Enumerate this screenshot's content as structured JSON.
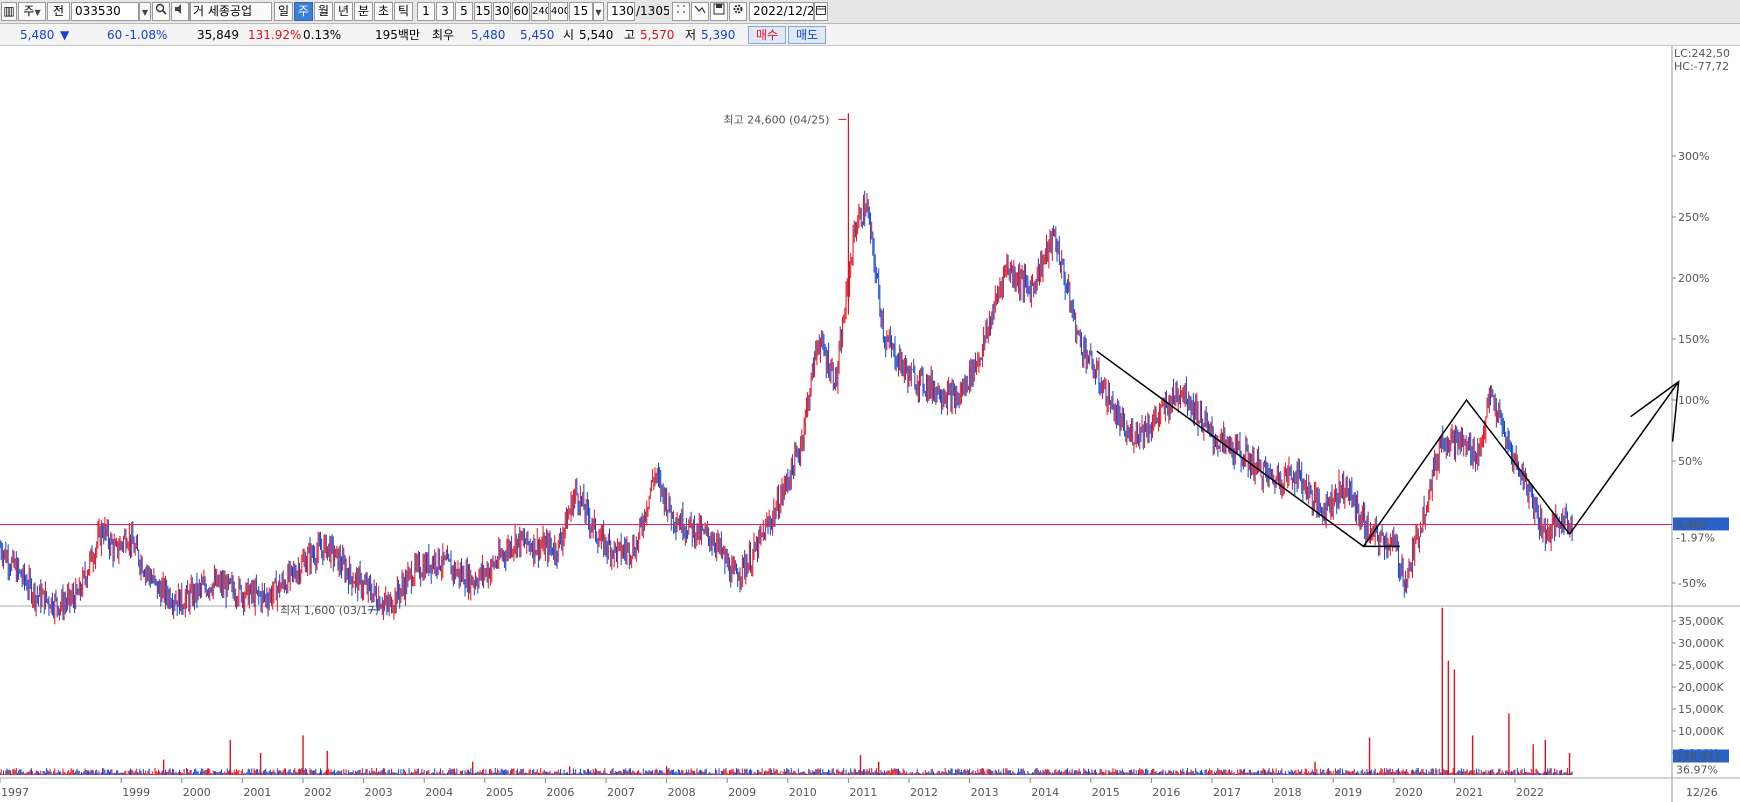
{
  "toolbar": {
    "market": "주",
    "tab_mode": "전",
    "stock_code": "033530",
    "stock_name": "세종공업",
    "stock_prefix": "거",
    "periods": [
      "일",
      "주",
      "월",
      "년",
      "분",
      "초",
      "틱"
    ],
    "active_period": "주",
    "intervals": [
      "1",
      "3",
      "5",
      "15",
      "30",
      "60",
      "240",
      "400"
    ],
    "count": "15",
    "bars_value": "1305",
    "bars_total": "/1305",
    "date": "2022/12/2"
  },
  "infobar": {
    "price": "5,480",
    "direction": "▼",
    "change": "60",
    "change_pct": "-1.08%",
    "volume": "35,849",
    "volume_ratio": "131.92%",
    "turnover": "0.13%",
    "amount": "195백만",
    "priority_label": "최우",
    "ask": "5,480",
    "bid": "5,450",
    "open_label": "시",
    "open": "5,540",
    "high_label": "고",
    "high": "5,570",
    "low_label": "저",
    "low": "5,390",
    "buy_label": "매수",
    "sell_label": "매도"
  },
  "colors": {
    "up": "#e0101a",
    "down": "#1144cc",
    "current_line": "#e8205a",
    "price_tag": "#2a63c7",
    "trend_line": "#000000"
  },
  "chart_data": {
    "type": "candlestick",
    "period": "weekly",
    "y_scale": "percent change",
    "lc": "LC:242,50",
    "hc": "HC:-77,72",
    "y_ticks": [
      "300%",
      "250%",
      "200%",
      "150%",
      "100%",
      "50%",
      "-50%"
    ],
    "x_ticks": [
      "1997",
      "1999",
      "2000",
      "2001",
      "2002",
      "2003",
      "2004",
      "2005",
      "2006",
      "2007",
      "2008",
      "2009",
      "2010",
      "2011",
      "2012",
      "2013",
      "2014",
      "2015",
      "2016",
      "2017",
      "2018",
      "2019",
      "2020",
      "2021",
      "2022"
    ],
    "x_end_label": "12/26",
    "high_annotation": "최고 24,600 (04/25)",
    "low_annotation": "최저 1,600 (03/17)",
    "current_price": "5,480",
    "current_pct": "-1.97%",
    "close_path": [
      {
        "x": 1997.0,
        "y": -20
      },
      {
        "x": 1997.2,
        "y": -35
      },
      {
        "x": 1997.6,
        "y": -60
      },
      {
        "x": 1998.0,
        "y": -68
      },
      {
        "x": 1998.3,
        "y": -60
      },
      {
        "x": 1998.5,
        "y": -30
      },
      {
        "x": 1998.7,
        "y": -5
      },
      {
        "x": 1998.9,
        "y": -25
      },
      {
        "x": 1999.1,
        "y": -10
      },
      {
        "x": 1999.3,
        "y": -30
      },
      {
        "x": 1999.6,
        "y": -55
      },
      {
        "x": 2000.0,
        "y": -65
      },
      {
        "x": 2000.5,
        "y": -50
      },
      {
        "x": 2001.0,
        "y": -58
      },
      {
        "x": 2001.4,
        "y": -62
      },
      {
        "x": 2001.8,
        "y": -45
      },
      {
        "x": 2002.1,
        "y": -28
      },
      {
        "x": 2002.4,
        "y": -20
      },
      {
        "x": 2002.8,
        "y": -45
      },
      {
        "x": 2003.2,
        "y": -60
      },
      {
        "x": 2003.4,
        "y": -70
      },
      {
        "x": 2003.8,
        "y": -42
      },
      {
        "x": 2004.2,
        "y": -30
      },
      {
        "x": 2004.5,
        "y": -40
      },
      {
        "x": 2004.8,
        "y": -48
      },
      {
        "x": 2005.1,
        "y": -38
      },
      {
        "x": 2005.5,
        "y": -15
      },
      {
        "x": 2005.9,
        "y": -20
      },
      {
        "x": 2006.2,
        "y": -22
      },
      {
        "x": 2006.5,
        "y": 25
      },
      {
        "x": 2006.9,
        "y": -15
      },
      {
        "x": 2007.2,
        "y": -25
      },
      {
        "x": 2007.5,
        "y": -20
      },
      {
        "x": 2007.8,
        "y": 40
      },
      {
        "x": 2008.1,
        "y": 5
      },
      {
        "x": 2008.4,
        "y": -5
      },
      {
        "x": 2008.8,
        "y": -15
      },
      {
        "x": 2009.1,
        "y": -45
      },
      {
        "x": 2009.4,
        "y": -30
      },
      {
        "x": 2009.8,
        "y": 10
      },
      {
        "x": 2010.2,
        "y": 60
      },
      {
        "x": 2010.5,
        "y": 150
      },
      {
        "x": 2010.8,
        "y": 115
      },
      {
        "x": 2011.1,
        "y": 240
      },
      {
        "x": 2011.3,
        "y": 260
      },
      {
        "x": 2011.6,
        "y": 150
      },
      {
        "x": 2012.0,
        "y": 120
      },
      {
        "x": 2012.4,
        "y": 110
      },
      {
        "x": 2012.8,
        "y": 100
      },
      {
        "x": 2013.2,
        "y": 140
      },
      {
        "x": 2013.6,
        "y": 210
      },
      {
        "x": 2014.0,
        "y": 190
      },
      {
        "x": 2014.4,
        "y": 235
      },
      {
        "x": 2014.8,
        "y": 150
      },
      {
        "x": 2015.2,
        "y": 110
      },
      {
        "x": 2015.6,
        "y": 70
      },
      {
        "x": 2016.0,
        "y": 80
      },
      {
        "x": 2016.5,
        "y": 110
      },
      {
        "x": 2017.0,
        "y": 70
      },
      {
        "x": 2017.5,
        "y": 55
      },
      {
        "x": 2018.0,
        "y": 35
      },
      {
        "x": 2018.4,
        "y": 40
      },
      {
        "x": 2018.8,
        "y": 10
      },
      {
        "x": 2019.2,
        "y": 30
      },
      {
        "x": 2019.6,
        "y": -10
      },
      {
        "x": 2020.0,
        "y": -18
      },
      {
        "x": 2020.2,
        "y": -50
      },
      {
        "x": 2020.5,
        "y": 10
      },
      {
        "x": 2020.8,
        "y": 70
      },
      {
        "x": 2021.1,
        "y": 65
      },
      {
        "x": 2021.4,
        "y": 55
      },
      {
        "x": 2021.6,
        "y": 105
      },
      {
        "x": 2021.9,
        "y": 60
      },
      {
        "x": 2022.2,
        "y": 30
      },
      {
        "x": 2022.5,
        "y": -10
      },
      {
        "x": 2022.8,
        "y": 2
      },
      {
        "x": 2022.95,
        "y": -2
      }
    ],
    "trend_lines": [
      {
        "x": [
          2015.1,
          2019.5,
          2020.1
        ],
        "y": [
          140,
          -20,
          -20
        ]
      },
      {
        "x": [
          2019.5,
          2021.2,
          2022.9
        ],
        "y": [
          -20,
          100,
          -10
        ]
      },
      {
        "x": [
          2022.9,
          2024.7
        ],
        "y": [
          -10,
          115
        ]
      }
    ],
    "volume": {
      "y_ticks": [
        "35,000K",
        "30,000K",
        "25,000K",
        "20,000K",
        "15,000K",
        "10,000K",
        "5,000K"
      ],
      "current_label": "138,911",
      "current_pct": "36.97%",
      "spikes": [
        {
          "x": 1999.7,
          "v": 3500
        },
        {
          "x": 2000.8,
          "v": 8000
        },
        {
          "x": 2001.3,
          "v": 5000
        },
        {
          "x": 2002.0,
          "v": 9000
        },
        {
          "x": 2002.4,
          "v": 5500
        },
        {
          "x": 2004.8,
          "v": 3000
        },
        {
          "x": 2006.4,
          "v": 2000
        },
        {
          "x": 2008.0,
          "v": 2000
        },
        {
          "x": 2011.2,
          "v": 4500
        },
        {
          "x": 2011.5,
          "v": 3000
        },
        {
          "x": 2018.7,
          "v": 3000
        },
        {
          "x": 2019.6,
          "v": 8500
        },
        {
          "x": 2020.8,
          "v": 38000
        },
        {
          "x": 2020.9,
          "v": 26000
        },
        {
          "x": 2021.0,
          "v": 24000
        },
        {
          "x": 2021.3,
          "v": 9000
        },
        {
          "x": 2021.9,
          "v": 14000
        },
        {
          "x": 2022.3,
          "v": 7000
        },
        {
          "x": 2022.5,
          "v": 8000
        },
        {
          "x": 2022.9,
          "v": 5000
        }
      ]
    }
  }
}
